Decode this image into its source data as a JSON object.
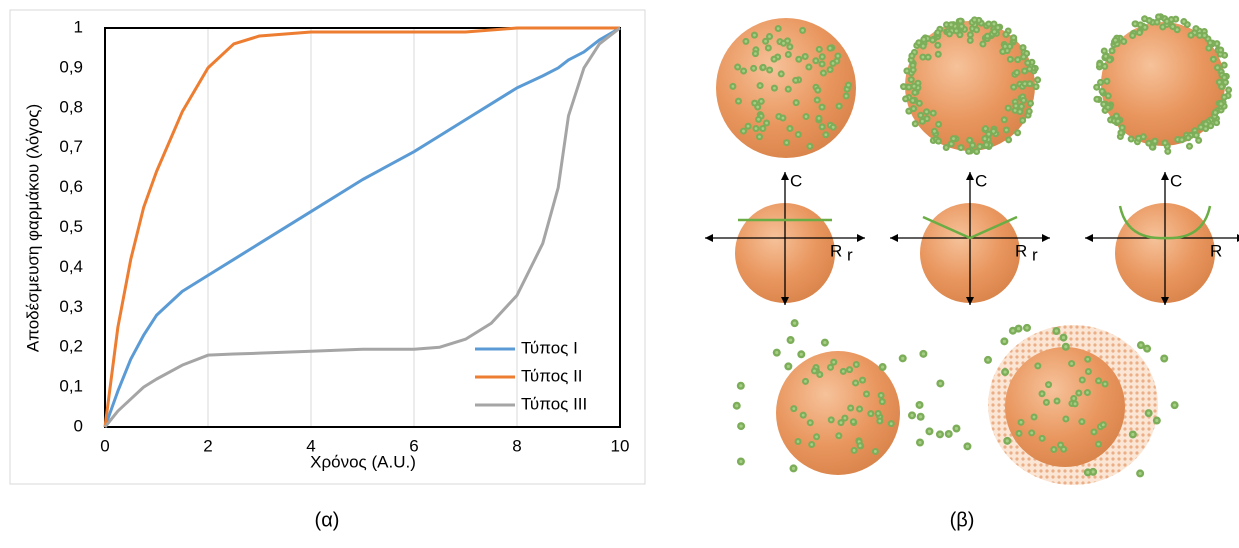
{
  "chart_data": {
    "type": "line",
    "x_label": "Χρόνος (A.U.)",
    "y_label": "Αποδέσμευση φαρμάκου (λόγος)",
    "caption": "(α)",
    "x": [
      0,
      0.25,
      0.5,
      0.75,
      1,
      1.5,
      2,
      2.5,
      3,
      4,
      5,
      6,
      6.5,
      7,
      7.5,
      8,
      8.5,
      8.8,
      9,
      9.3,
      9.6,
      10
    ],
    "series": [
      {
        "name": "Τύπος I",
        "color": "#5b9bd5",
        "values": [
          0,
          0.09,
          0.17,
          0.23,
          0.28,
          0.34,
          0.38,
          0.42,
          0.46,
          0.54,
          0.62,
          0.69,
          0.73,
          0.77,
          0.81,
          0.85,
          0.88,
          0.9,
          0.92,
          0.94,
          0.97,
          1
        ]
      },
      {
        "name": "Τύπος II",
        "color": "#ed7d31",
        "values": [
          0,
          0.25,
          0.42,
          0.55,
          0.64,
          0.79,
          0.9,
          0.96,
          0.98,
          0.99,
          0.99,
          0.99,
          0.99,
          0.99,
          0.995,
          1,
          1,
          1,
          1,
          1,
          1,
          1
        ]
      },
      {
        "name": "Τύπος III",
        "color": "#a5a5a5",
        "values": [
          0,
          0.04,
          0.07,
          0.1,
          0.12,
          0.155,
          0.18,
          0.183,
          0.185,
          0.19,
          0.195,
          0.195,
          0.2,
          0.22,
          0.26,
          0.33,
          0.46,
          0.6,
          0.78,
          0.9,
          0.96,
          1
        ]
      }
    ],
    "xlim": [
      0,
      10
    ],
    "xticks": [
      0,
      2,
      4,
      6,
      8,
      10
    ],
    "ylim": [
      0,
      1
    ],
    "yticks": [
      0,
      {
        "value": 0.1,
        "label": "0,1"
      },
      {
        "value": 0.2,
        "label": "0,2"
      },
      {
        "value": 0.3,
        "label": "0,3"
      },
      {
        "value": 0.4,
        "label": "0,4"
      },
      {
        "value": 0.5,
        "label": "0,5"
      },
      {
        "value": 0.6,
        "label": "0,6"
      },
      {
        "value": 0.7,
        "label": "0,7"
      },
      {
        "value": 0.8,
        "label": "0,8"
      },
      {
        "value": 0.9,
        "label": "0,9"
      },
      1
    ],
    "grid": "x",
    "legend": "lower right"
  },
  "diagram": {
    "caption": "(β)",
    "profiles": [
      {
        "y_label": "C",
        "x_labels": [
          "R",
          "r"
        ]
      },
      {
        "y_label": "C",
        "x_labels": [
          "R",
          "r"
        ]
      },
      {
        "y_label": "C",
        "x_labels": [
          "R"
        ]
      }
    ]
  }
}
